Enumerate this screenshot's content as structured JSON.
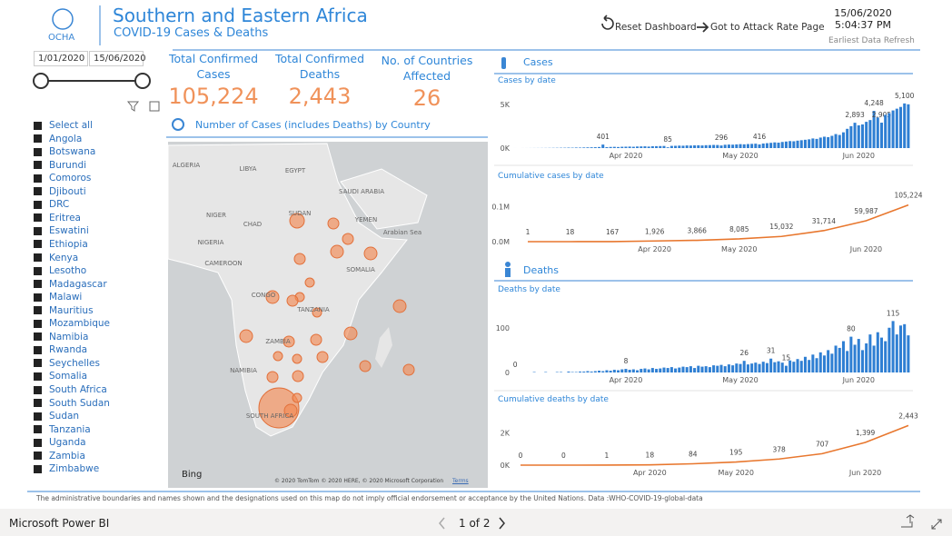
{
  "header": {
    "logo": "OCHA",
    "title": "Southern and Eastern Africa",
    "subtitle": "COVID-19 Cases & Deaths",
    "buttons": [
      "Reset Dashboard",
      "Got to Attack Rate Page"
    ],
    "datetime": "15/06/2020 5:04:37 PM",
    "refresh_note": "Earliest Data Refresh"
  },
  "slicer": {
    "start_date": "1/01/2020",
    "end_date": "15/06/2020",
    "items": [
      "Select all",
      "Angola",
      "Botswana",
      "Burundi",
      "Comoros",
      "Djibouti",
      "DRC",
      "Eritrea",
      "Eswatini",
      "Ethiopia",
      "Kenya",
      "Lesotho",
      "Madagascar",
      "Malawi",
      "Mauritius",
      "Mozambique",
      "Namibia",
      "Rwanda",
      "Seychelles",
      "Somalia",
      "South Africa",
      "South Sudan",
      "Sudan",
      "Tanzania",
      "Uganda",
      "Zambia",
      "Zimbabwe"
    ]
  },
  "kpis": [
    {
      "label": "Total Confirmed Cases",
      "value": "105,224"
    },
    {
      "label": "Total Confirmed Deaths",
      "value": "2,443"
    },
    {
      "label": "No. of Countries Affected",
      "value": "26"
    }
  ],
  "map": {
    "title": "Number of Cases (includes Deaths) by Country",
    "labels": [
      "ALGERIA",
      "LIBYA",
      "EGYPT",
      "NIGER",
      "CHAD",
      "SUDAN",
      "NIGERIA",
      "SAUDI ARABIA",
      "YEMEN",
      "Arabian Sea",
      "CAMEROON",
      "SOMALIA",
      "CONGO",
      "TANZANIA",
      "ZAMBIA",
      "NAMIBIA",
      "SOUTH AFRICA"
    ],
    "provider": "Bing",
    "copyright": "© 2020 TomTom © 2020 HERE, © 2020 Microsoft Corporation",
    "terms": "Terms"
  },
  "sections": [
    "Cases",
    "Deaths"
  ],
  "chart_data": [
    {
      "type": "bar",
      "title": "Cases by date",
      "color": "#2f7fd3",
      "categories": [
        null,
        null,
        null,
        null,
        null,
        null,
        null,
        null,
        null,
        null,
        null,
        null,
        null,
        null,
        null,
        null,
        null,
        null,
        null,
        null,
        null,
        null,
        null,
        null,
        null,
        null,
        null,
        null,
        null,
        "Apr 2020",
        null,
        null,
        null,
        null,
        null,
        null,
        null,
        null,
        null,
        null,
        null,
        null,
        null,
        null,
        null,
        null,
        null,
        null,
        null,
        null,
        null,
        null,
        null,
        null,
        null,
        null,
        null,
        null,
        null,
        "May 2020",
        null,
        null,
        null,
        null,
        null,
        null,
        null,
        null,
        null,
        null,
        null,
        null,
        null,
        null,
        null,
        null,
        null,
        null,
        null,
        null,
        null,
        null,
        null,
        null,
        null,
        null,
        null,
        null,
        null,
        null,
        "Jun 2020",
        null,
        null,
        null,
        null,
        null,
        null,
        null,
        null,
        null,
        null,
        null,
        null,
        null
      ],
      "values": [
        1,
        0,
        2,
        3,
        5,
        8,
        10,
        12,
        15,
        20,
        25,
        30,
        35,
        40,
        50,
        45,
        60,
        55,
        70,
        80,
        90,
        100,
        120,
        401,
        110,
        130,
        140,
        120,
        150,
        160,
        170,
        150,
        180,
        190,
        200,
        170,
        210,
        220,
        230,
        240,
        85,
        250,
        260,
        280,
        270,
        300,
        290,
        310,
        320,
        300,
        330,
        340,
        360,
        350,
        296,
        380,
        400,
        390,
        420,
        450,
        430,
        460,
        480,
        500,
        416,
        520,
        560,
        600,
        650,
        620,
        700,
        750,
        800,
        780,
        850,
        900,
        950,
        1000,
        1100,
        1050,
        1200,
        1300,
        1250,
        1400,
        1600,
        1500,
        1800,
        2200,
        2500,
        2893,
        2600,
        2700,
        3000,
        3200,
        4248,
        3500,
        2905,
        3800,
        4000,
        4300,
        4500,
        4700,
        5100,
        5000
      ],
      "value_labels": [
        null,
        null,
        null,
        null,
        null,
        null,
        null,
        null,
        null,
        null,
        null,
        null,
        null,
        null,
        null,
        null,
        null,
        null,
        null,
        null,
        null,
        null,
        null,
        "401",
        null,
        null,
        null,
        null,
        null,
        null,
        null,
        null,
        null,
        null,
        null,
        null,
        null,
        null,
        null,
        null,
        "85",
        null,
        null,
        null,
        null,
        null,
        null,
        null,
        null,
        null,
        null,
        null,
        null,
        null,
        "296",
        null,
        null,
        null,
        null,
        null,
        null,
        null,
        null,
        null,
        "416",
        null,
        null,
        null,
        null,
        null,
        null,
        null,
        null,
        null,
        null,
        null,
        null,
        null,
        null,
        null,
        null,
        null,
        null,
        null,
        null,
        null,
        null,
        null,
        null,
        "2,893",
        null,
        null,
        null,
        null,
        "4,248",
        null,
        "2,905",
        null,
        null,
        null,
        null,
        null,
        "5,100",
        null
      ],
      "ylim": [
        0,
        5500
      ],
      "yticks": [
        {
          "value": 0,
          "label": "0K"
        },
        {
          "value": 5000,
          "label": "5K"
        }
      ]
    },
    {
      "type": "line",
      "title": "Cumulative cases by date",
      "color": "#e8772e",
      "categories": [
        null,
        null,
        null,
        "Apr 2020",
        null,
        "May 2020",
        null,
        null,
        "Jun 2020",
        null
      ],
      "values": [
        1,
        18,
        167,
        1926,
        3866,
        8085,
        15032,
        31714,
        59987,
        105224
      ],
      "value_labels": [
        "1",
        "18",
        "167",
        "1,926",
        "3,866",
        "8,085",
        "15,032",
        "31,714",
        "59,987",
        "105,224"
      ],
      "ylim": [
        0,
        120000
      ],
      "yticks": [
        {
          "value": 0,
          "label": "0.0M"
        },
        {
          "value": 100000,
          "label": "0.1M"
        }
      ]
    },
    {
      "type": "bar",
      "title": "Deaths by date",
      "color": "#2f7fd3",
      "categories": [
        null,
        null,
        null,
        null,
        null,
        null,
        null,
        null,
        null,
        null,
        null,
        null,
        null,
        null,
        null,
        null,
        null,
        null,
        null,
        null,
        null,
        null,
        null,
        null,
        null,
        null,
        null,
        null,
        null,
        "Apr 2020",
        null,
        null,
        null,
        null,
        null,
        null,
        null,
        null,
        null,
        null,
        null,
        null,
        null,
        null,
        null,
        null,
        null,
        null,
        null,
        null,
        null,
        null,
        null,
        null,
        null,
        null,
        null,
        null,
        null,
        "May 2020",
        null,
        null,
        null,
        null,
        null,
        null,
        null,
        null,
        null,
        null,
        null,
        null,
        null,
        null,
        null,
        null,
        null,
        null,
        null,
        null,
        null,
        null,
        null,
        null,
        null,
        null,
        null,
        null,
        null,
        null,
        "Jun 2020",
        null,
        null,
        null,
        null,
        null,
        null,
        null,
        null,
        null,
        null,
        null,
        null,
        null
      ],
      "values": [
        0,
        0,
        0,
        0,
        0,
        1,
        0,
        0,
        1,
        0,
        0,
        1,
        1,
        0,
        2,
        1,
        1,
        2,
        2,
        3,
        2,
        3,
        4,
        3,
        5,
        4,
        6,
        5,
        7,
        8,
        6,
        7,
        5,
        8,
        9,
        7,
        10,
        8,
        9,
        11,
        10,
        12,
        9,
        11,
        13,
        12,
        14,
        10,
        15,
        13,
        14,
        12,
        16,
        15,
        17,
        14,
        18,
        16,
        20,
        19,
        26,
        18,
        20,
        22,
        19,
        24,
        21,
        31,
        23,
        25,
        22,
        15,
        27,
        24,
        30,
        26,
        35,
        28,
        40,
        32,
        45,
        38,
        50,
        42,
        60,
        55,
        70,
        48,
        80,
        62,
        75,
        50,
        65,
        85,
        60,
        90,
        78,
        70,
        100,
        115,
        85,
        105,
        108,
        83
      ],
      "value_labels": [
        "0",
        null,
        null,
        null,
        null,
        null,
        null,
        null,
        null,
        null,
        null,
        null,
        null,
        null,
        null,
        null,
        null,
        null,
        null,
        null,
        null,
        null,
        null,
        null,
        null,
        null,
        null,
        null,
        null,
        "8",
        null,
        null,
        null,
        null,
        null,
        null,
        null,
        null,
        null,
        null,
        null,
        null,
        null,
        null,
        null,
        null,
        null,
        null,
        null,
        null,
        null,
        null,
        null,
        null,
        null,
        null,
        null,
        null,
        null,
        null,
        "26",
        null,
        null,
        null,
        null,
        null,
        null,
        "31",
        null,
        null,
        null,
        "15",
        null,
        null,
        null,
        null,
        null,
        null,
        null,
        null,
        null,
        null,
        null,
        null,
        null,
        null,
        null,
        null,
        "80",
        null,
        null,
        null,
        null,
        null,
        null,
        null,
        null,
        null,
        null,
        "115",
        null,
        null,
        null,
        null
      ],
      "ylim": [
        0,
        130
      ],
      "yticks": [
        0,
        100
      ]
    },
    {
      "type": "line",
      "title": "Cumulative deaths by date",
      "color": "#e8772e",
      "categories": [
        null,
        null,
        null,
        "Apr 2020",
        null,
        "May 2020",
        null,
        null,
        "Jun 2020",
        null
      ],
      "values": [
        0,
        0,
        1,
        18,
        84,
        195,
        378,
        707,
        1399,
        2443
      ],
      "value_labels": [
        "0",
        "0",
        "1",
        "18",
        "84",
        "195",
        "378",
        "707",
        "1,399",
        "2,443"
      ],
      "ylim": [
        0,
        2800
      ],
      "yticks": [
        {
          "value": 0,
          "label": "0K"
        },
        {
          "value": 2000,
          "label": "2K"
        }
      ]
    }
  ],
  "footer": "The administrative boundaries and names shown and the designations used on this map do not imply official endorsement or acceptance by the United Nations.  Data :WHO-COVID-19-global-data",
  "bottom_bar": {
    "app": "Microsoft Power BI",
    "page": "1 of 2"
  }
}
